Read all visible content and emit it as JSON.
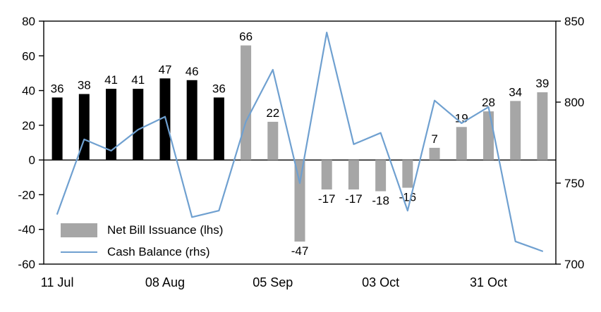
{
  "legend": {
    "items": [
      {
        "label": "Net Bill Issuance (lhs)",
        "swatch": "bar",
        "color": "#a6a6a6"
      },
      {
        "label": "Cash Balance (rhs)",
        "swatch": "line",
        "color": "#6fa0d0"
      }
    ]
  },
  "chart_data": {
    "type": "bar+line combo",
    "n_points": 19,
    "x_ticks": [
      {
        "index": 0,
        "label": "11 Jul"
      },
      {
        "index": 4,
        "label": "08 Aug"
      },
      {
        "index": 8,
        "label": "05 Sep"
      },
      {
        "index": 12,
        "label": "03 Oct"
      },
      {
        "index": 16,
        "label": "31 Oct"
      }
    ],
    "series": [
      {
        "name": "Net Bill Issuance (lhs)",
        "type": "bar",
        "axis": "left",
        "values": [
          36,
          38,
          41,
          41,
          47,
          46,
          36,
          66,
          22,
          -47,
          -17,
          -17,
          -18,
          -16,
          7,
          19,
          28,
          34,
          39
        ],
        "point_colors": [
          "#000000",
          "#000000",
          "#000000",
          "#000000",
          "#000000",
          "#000000",
          "#000000",
          "#a6a6a6",
          "#a6a6a6",
          "#a6a6a6",
          "#a6a6a6",
          "#a6a6a6",
          "#a6a6a6",
          "#a6a6a6",
          "#a6a6a6",
          "#a6a6a6",
          "#a6a6a6",
          "#a6a6a6",
          "#a6a6a6"
        ]
      },
      {
        "name": "Cash Balance (rhs)",
        "type": "line",
        "axis": "right",
        "color": "#6fa0d0",
        "values": [
          731,
          777,
          770,
          783,
          791,
          729,
          733,
          788,
          820,
          750,
          843,
          774,
          781,
          733,
          801,
          787,
          797,
          714,
          708
        ]
      }
    ],
    "left_axis": {
      "min": -60,
      "max": 80,
      "ticks": [
        80,
        60,
        40,
        20,
        0,
        -20,
        -40,
        -60
      ]
    },
    "right_axis": {
      "min": 700,
      "max": 850,
      "ticks": [
        850,
        800,
        750,
        700
      ]
    },
    "value_labels": true,
    "grid": false,
    "legend_position": "inside lower-left"
  }
}
